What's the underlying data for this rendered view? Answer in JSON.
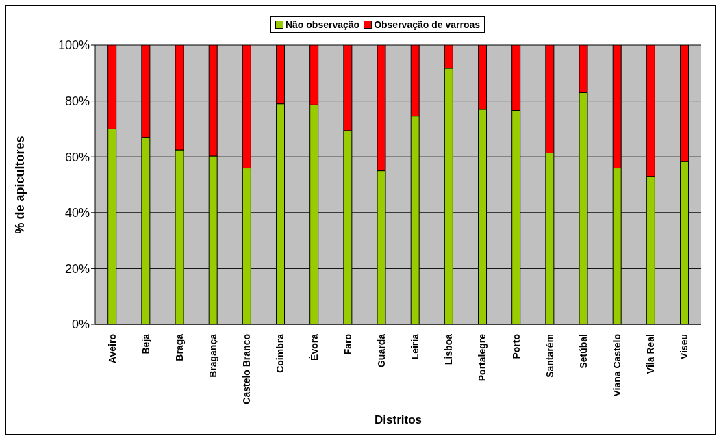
{
  "chart_data": {
    "type": "bar",
    "stacked": true,
    "xlabel": "Distritos",
    "ylabel": "% de apicultores",
    "categories": [
      "Aveiro",
      "Beja",
      "Braga",
      "Bragança",
      "Castelo Branco",
      "Coimbra",
      "Évora",
      "Faro",
      "Guarda",
      "Leiria",
      "Lisboa",
      "Portalegre",
      "Porto",
      "Santarém",
      "Setúbal",
      "Viana Castelo",
      "Vila Real",
      "Viseu"
    ],
    "series": [
      {
        "name": "Não observação",
        "color": "#99cc00",
        "values": [
          70,
          67,
          62.5,
          60.3,
          56,
          79,
          78.6,
          69.4,
          55,
          74.6,
          91.7,
          77,
          76.6,
          61.4,
          83,
          56,
          53,
          58.3
        ]
      },
      {
        "name": "Observação de varroas",
        "color": "#ff0000",
        "values": [
          30,
          33,
          37.5,
          39.7,
          44,
          21,
          21.4,
          30.6,
          45,
          25.4,
          8.3,
          23,
          23.4,
          38.6,
          17,
          44,
          47,
          41.7
        ]
      }
    ],
    "ylim": [
      0,
      100
    ],
    "yticks": [
      {
        "value": 0,
        "label": "0%"
      },
      {
        "value": 20,
        "label": "20%"
      },
      {
        "value": 40,
        "label": "40%"
      },
      {
        "value": 60,
        "label": "60%"
      },
      {
        "value": 80,
        "label": "80%"
      },
      {
        "value": 100,
        "label": "100%"
      }
    ],
    "grid": "y",
    "legend": "top"
  }
}
